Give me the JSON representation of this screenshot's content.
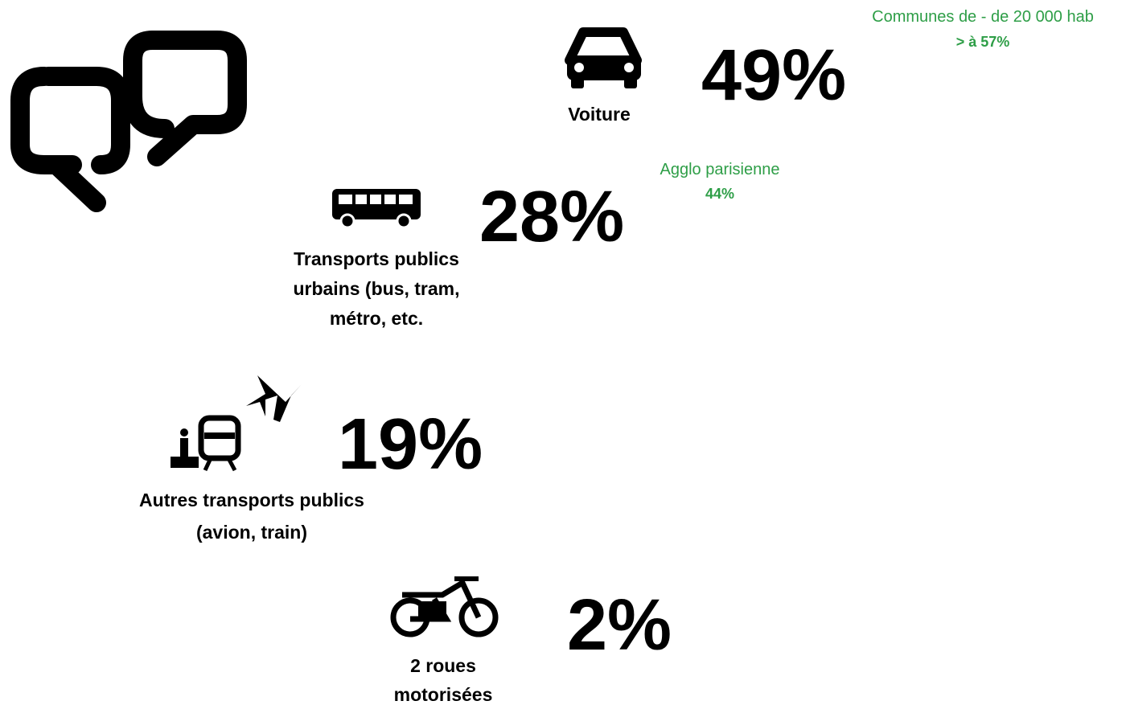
{
  "items": [
    {
      "label": "Voiture",
      "value": "49%"
    },
    {
      "label": [
        "Transports publics",
        "urbains (bus, tram,",
        "métro, etc."
      ],
      "value": "28%"
    },
    {
      "label": [
        "Autres transports publics",
        "(avion, train)"
      ],
      "value": "19%"
    },
    {
      "label": [
        "2 roues",
        "motorisées"
      ],
      "value": "2%"
    }
  ],
  "notes": [
    {
      "text": "Communes de - de 20 000 hab",
      "value": "> à 57%"
    },
    {
      "text": "Agglo parisienne",
      "value": "44%"
    }
  ]
}
